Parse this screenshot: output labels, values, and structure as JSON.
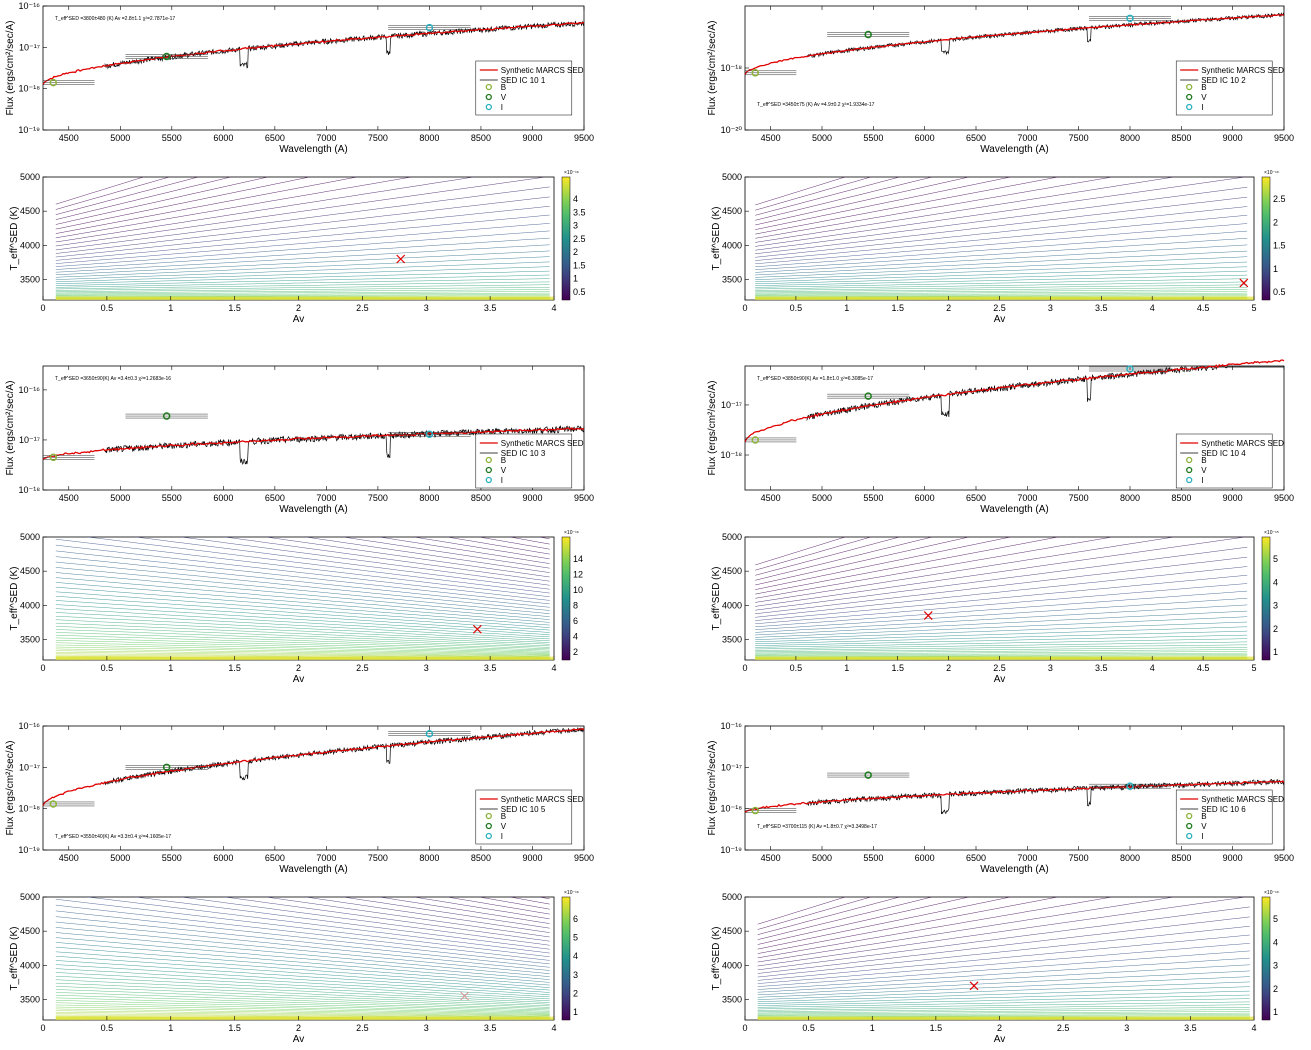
{
  "common": {
    "sed_xlabel": "Wavelength (A)",
    "sed_ylabel": "Flux (ergs/cm²/sec/A)",
    "sed_xticks": [
      "4500",
      "5000",
      "5500",
      "6000",
      "6500",
      "7000",
      "7500",
      "8000",
      "8500",
      "9000",
      "9500"
    ],
    "contour_xlabel": "Av",
    "contour_ylabel": "T_eff^SED (K)",
    "contour_yticks": [
      "3500",
      "4000",
      "4500",
      "5000"
    ],
    "legend_model": "Synthetic MARCS SED",
    "legend_B": "B",
    "legend_V": "V",
    "legend_I": "I",
    "colors": {
      "model": "#e00000",
      "sed": "#000000",
      "B": "#8db33a",
      "V": "#1f7a1f",
      "I": "#2ab0c0",
      "marker": "#e00000"
    }
  },
  "panels": [
    {
      "sed": {
        "legend_sed": "SED IC 10 1",
        "annotation": "T_eff^SED =3800±480 (K) Av =2.8±1.1 χ²=2.7871e-17",
        "yexp": [
          "10⁻¹⁶",
          "10⁻¹⁷",
          "10⁻¹⁸",
          "10⁻¹⁹"
        ]
      },
      "contour": {
        "xticks": [
          "0",
          "0.5",
          "1",
          "1.5",
          "2",
          "2.5",
          "3",
          "3.5",
          "4"
        ],
        "xmax": 4,
        "cbar_ticks": [
          "0.5",
          "1",
          "1.5",
          "2",
          "2.5",
          "3",
          "3.5",
          "4"
        ],
        "cbar_exp": "×10⁻¹⁶",
        "best_av": 2.8,
        "best_teff": 3800
      }
    },
    {
      "sed": {
        "legend_sed": "SED IC 10 2",
        "annotation": "T_eff^SED =3450±75 (K) Av =4.9±0.2 χ²=1.9334e-17",
        "yexp": [
          "10⁻¹⁸",
          "10⁻²⁰"
        ]
      },
      "contour": {
        "xticks": [
          "0",
          "0.5",
          "1",
          "1.5",
          "2",
          "2.5",
          "3",
          "3.5",
          "4",
          "4.5",
          "5"
        ],
        "xmax": 5,
        "cbar_ticks": [
          "0.5",
          "1",
          "1.5",
          "2",
          "2.5"
        ],
        "cbar_exp": "×10⁻¹⁶",
        "best_av": 4.9,
        "best_teff": 3450
      }
    },
    {
      "sed": {
        "legend_sed": "SED IC 10 3",
        "annotation": "T_eff^SED =3650±90(K) Av =3.4±0.3 χ²=1.2683e-16",
        "yexp": [
          "10⁻¹⁶",
          "10⁻¹⁷",
          "10⁻¹⁸"
        ]
      },
      "contour": {
        "xticks": [
          "0",
          "0.5",
          "1",
          "1.5",
          "2",
          "2.5",
          "3",
          "3.5",
          "4"
        ],
        "xmax": 4,
        "cbar_ticks": [
          "2",
          "4",
          "6",
          "8",
          "10",
          "12",
          "14"
        ],
        "cbar_exp": "×10⁻¹⁶",
        "best_av": 3.4,
        "best_teff": 3650
      }
    },
    {
      "sed": {
        "legend_sed": "SED IC 10 4",
        "annotation": "T_eff^SED =3850±90(K) Av =1.8±1.0 χ²=6.3085e-17",
        "yexp": [
          "10⁻¹⁷",
          "10⁻¹⁸"
        ]
      },
      "contour": {
        "xticks": [
          "0",
          "0.5",
          "1",
          "1.5",
          "2",
          "2.5",
          "3",
          "3.5",
          "4",
          "4.5",
          "5"
        ],
        "xmax": 5,
        "cbar_ticks": [
          "1",
          "2",
          "3",
          "4",
          "5"
        ],
        "cbar_exp": "×10⁻¹⁵",
        "best_av": 1.8,
        "best_teff": 3850
      }
    },
    {
      "sed": {
        "legend_sed": "SED IC 10 5",
        "annotation": "T_eff^SED =3550±40(K) Av =3.3±0.4 χ²=4.1605e-17",
        "yexp": [
          "10⁻¹⁶",
          "10⁻¹⁷",
          "10⁻¹⁸",
          "10⁻¹⁹"
        ]
      },
      "contour": {
        "xticks": [
          "0",
          "0.5",
          "1",
          "1.5",
          "2",
          "2.5",
          "3",
          "3.5",
          "4"
        ],
        "xmax": 4,
        "cbar_ticks": [
          "1",
          "2",
          "3",
          "4",
          "5",
          "6"
        ],
        "cbar_exp": "×10⁻¹⁶",
        "best_av": 3.3,
        "best_teff": 3550
      }
    },
    {
      "sed": {
        "legend_sed": "SED IC 10 6",
        "annotation": "T_eff^SED =3700±115 (K) Av =1.8±0.7 χ²=3.3498e-17",
        "yexp": [
          "10⁻¹⁶",
          "10⁻¹⁷",
          "10⁻¹⁸",
          "10⁻¹⁹"
        ]
      },
      "contour": {
        "xticks": [
          "0",
          "0.5",
          "1",
          "1.5",
          "2",
          "2.5",
          "3",
          "3.5",
          "4"
        ],
        "xmax": 4,
        "cbar_ticks": [
          "1",
          "2",
          "3",
          "4",
          "5"
        ],
        "cbar_exp": "×10⁻¹⁶",
        "best_av": 1.8,
        "best_teff": 3700
      }
    }
  ],
  "chart_data": [
    {
      "type": "line",
      "title": "",
      "panel": "IC 10 1",
      "xlabel": "Wavelength (A)",
      "ylabel": "Flux (ergs/cm²/sec/A)",
      "xlim": [
        4250,
        9500
      ],
      "yscale": "log",
      "ylim": [
        1e-19,
        1e-16
      ],
      "series": [
        {
          "name": "Synthetic MARCS SED"
        },
        {
          "name": "SED IC 10 1"
        }
      ],
      "photometry": [
        {
          "name": "B",
          "x": 4350,
          "y": 1.4e-18
        },
        {
          "name": "V",
          "x": 5450,
          "y": 6e-18
        },
        {
          "name": "I",
          "x": 8000,
          "y": 3e-17
        }
      ]
    },
    {
      "type": "line",
      "title": "",
      "panel": "IC 10 2",
      "xlabel": "Wavelength (A)",
      "ylabel": "Flux (ergs/cm²/sec/A)",
      "xlim": [
        4250,
        9500
      ],
      "yscale": "log",
      "ylim": [
        1e-20,
        1e-16
      ],
      "series": [
        {
          "name": "Synthetic MARCS SED"
        },
        {
          "name": "SED IC 10 2"
        }
      ],
      "photometry": [
        {
          "name": "B",
          "x": 4350,
          "y": 7e-19
        },
        {
          "name": "V",
          "x": 5450,
          "y": 1.2e-17
        },
        {
          "name": "I",
          "x": 8000,
          "y": 4e-17
        }
      ]
    },
    {
      "type": "line",
      "title": "",
      "panel": "IC 10 3",
      "xlabel": "Wavelength (A)",
      "ylabel": "Flux (ergs/cm²/sec/A)",
      "xlim": [
        4250,
        9500
      ],
      "yscale": "log",
      "ylim": [
        1e-18,
        3e-16
      ],
      "series": [
        {
          "name": "Synthetic MARCS SED"
        },
        {
          "name": "SED IC 10 3"
        }
      ],
      "photometry": [
        {
          "name": "B",
          "x": 4350,
          "y": 4.5e-18
        },
        {
          "name": "V",
          "x": 5450,
          "y": 3e-17
        },
        {
          "name": "I",
          "x": 8000,
          "y": 1.3e-17
        }
      ]
    },
    {
      "type": "line",
      "title": "",
      "panel": "IC 10 4",
      "xlabel": "Wavelength (A)",
      "ylabel": "Flux (ergs/cm²/sec/A)",
      "xlim": [
        4250,
        9500
      ],
      "yscale": "log",
      "ylim": [
        2e-19,
        6e-17
      ],
      "series": [
        {
          "name": "Synthetic MARCS SED"
        },
        {
          "name": "SED IC 10 4"
        }
      ],
      "photometry": [
        {
          "name": "B",
          "x": 4350,
          "y": 2e-18
        },
        {
          "name": "V",
          "x": 5450,
          "y": 1.5e-17
        },
        {
          "name": "I",
          "x": 8000,
          "y": 6e-17
        }
      ]
    },
    {
      "type": "line",
      "title": "",
      "panel": "IC 10 5",
      "xlabel": "Wavelength (A)",
      "ylabel": "Flux (ergs/cm²/sec/A)",
      "xlim": [
        4250,
        9500
      ],
      "yscale": "log",
      "ylim": [
        1e-19,
        1e-16
      ],
      "series": [
        {
          "name": "Synthetic MARCS SED"
        },
        {
          "name": "SED IC 10 5"
        }
      ],
      "photometry": [
        {
          "name": "B",
          "x": 4350,
          "y": 1.3e-18
        },
        {
          "name": "V",
          "x": 5450,
          "y": 1e-17
        },
        {
          "name": "I",
          "x": 8000,
          "y": 6.5e-17
        }
      ]
    },
    {
      "type": "line",
      "title": "",
      "panel": "IC 10 6",
      "xlabel": "Wavelength (A)",
      "ylabel": "Flux (ergs/cm²/sec/A)",
      "xlim": [
        4250,
        9500
      ],
      "yscale": "log",
      "ylim": [
        1e-19,
        1e-16
      ],
      "series": [
        {
          "name": "Synthetic MARCS SED"
        },
        {
          "name": "SED IC 10 6"
        }
      ],
      "photometry": [
        {
          "name": "B",
          "x": 4350,
          "y": 9e-19
        },
        {
          "name": "V",
          "x": 5450,
          "y": 6.5e-18
        },
        {
          "name": "I",
          "x": 8000,
          "y": 3.5e-18
        }
      ]
    },
    {
      "type": "heatmap",
      "title": "",
      "panel": "IC 10 1 contour",
      "xlabel": "Av",
      "ylabel": "T_eff^SED (K)",
      "xlim": [
        0,
        4
      ],
      "ylim": [
        3200,
        5000
      ],
      "best_fit": {
        "x": 2.8,
        "y": 3800
      }
    },
    {
      "type": "heatmap",
      "title": "",
      "panel": "IC 10 2 contour",
      "xlabel": "Av",
      "ylabel": "T_eff^SED (K)",
      "xlim": [
        0,
        5
      ],
      "ylim": [
        3200,
        5000
      ],
      "best_fit": {
        "x": 4.9,
        "y": 3450
      }
    },
    {
      "type": "heatmap",
      "title": "",
      "panel": "IC 10 3 contour",
      "xlabel": "Av",
      "ylabel": "T_eff^SED (K)",
      "xlim": [
        0,
        4
      ],
      "ylim": [
        3200,
        5000
      ],
      "best_fit": {
        "x": 3.4,
        "y": 3650
      }
    },
    {
      "type": "heatmap",
      "title": "",
      "panel": "IC 10 4 contour",
      "xlabel": "Av",
      "ylabel": "T_eff^SED (K)",
      "xlim": [
        0,
        5
      ],
      "ylim": [
        3200,
        5000
      ],
      "best_fit": {
        "x": 1.8,
        "y": 3850
      }
    },
    {
      "type": "heatmap",
      "title": "",
      "panel": "IC 10 5 contour",
      "xlabel": "Av",
      "ylabel": "T_eff^SED (K)",
      "xlim": [
        0,
        4
      ],
      "ylim": [
        3200,
        5000
      ],
      "best_fit": {
        "x": 3.3,
        "y": 3550
      }
    },
    {
      "type": "heatmap",
      "title": "",
      "panel": "IC 10 6 contour",
      "xlabel": "Av",
      "ylabel": "T_eff^SED (K)",
      "xlim": [
        0,
        4
      ],
      "ylim": [
        3200,
        5000
      ],
      "best_fit": {
        "x": 1.8,
        "y": 3700
      }
    }
  ]
}
